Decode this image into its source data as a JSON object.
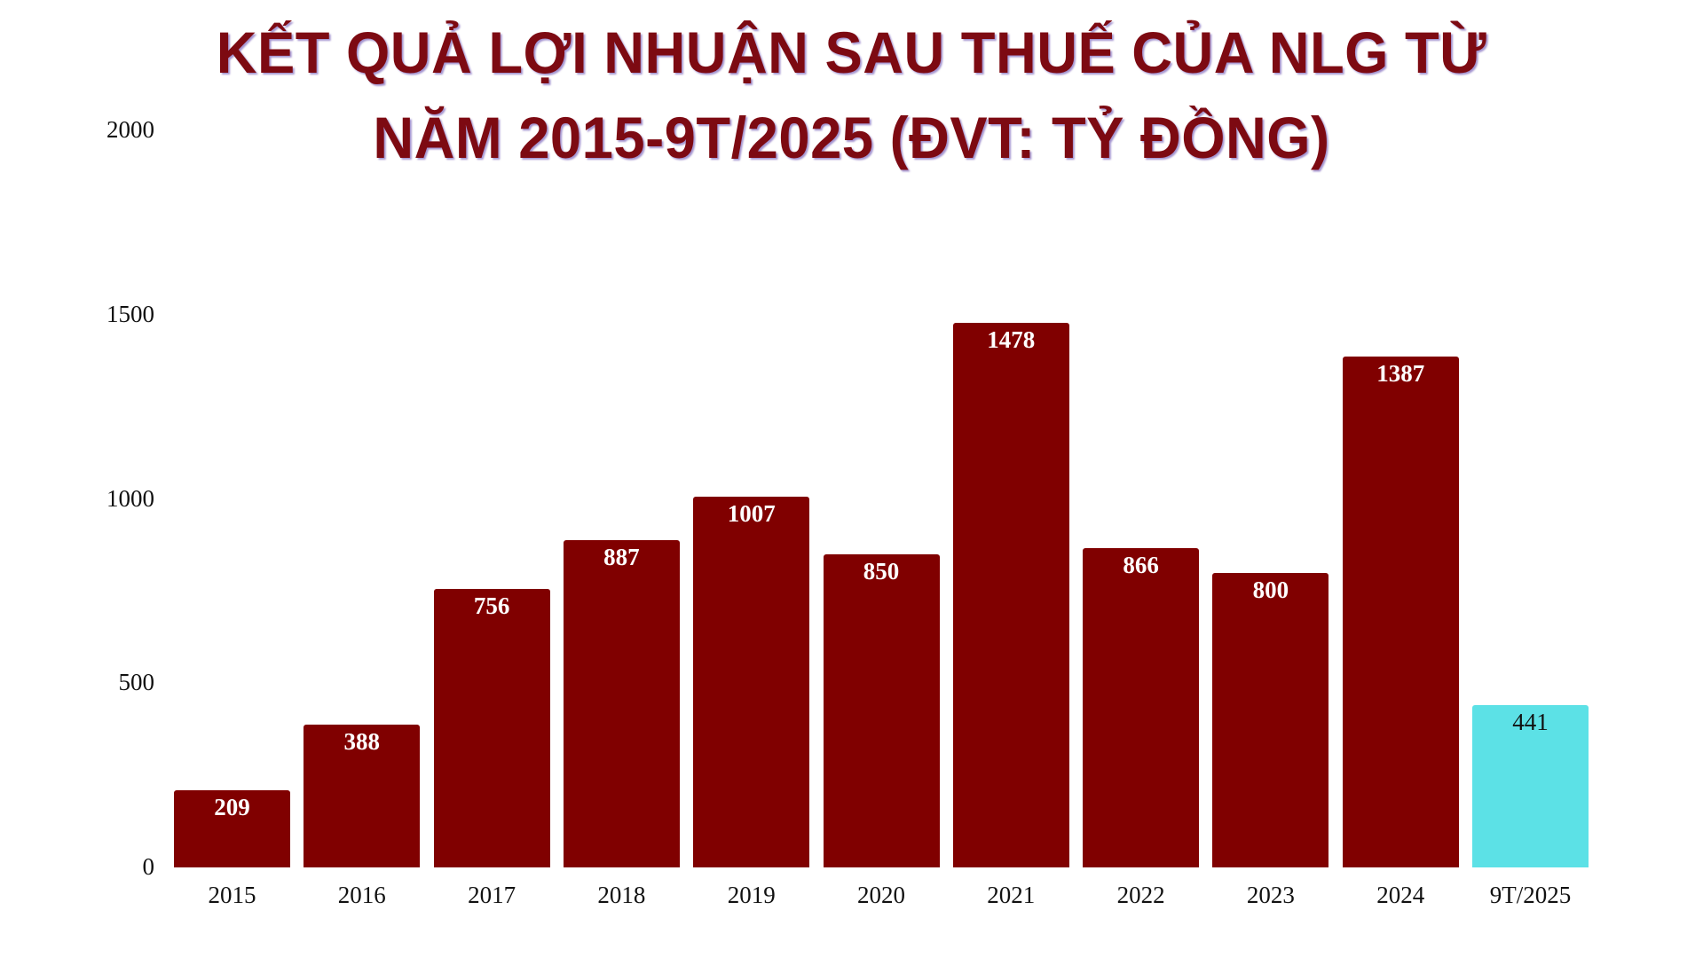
{
  "title": {
    "line1": "KẾT QUẢ LỢI NHUẬN SAU THUẾ CỦA NLG TỪ",
    "line2": "NĂM 2015-9T/2025 (ĐVT: TỶ ĐỒNG)"
  },
  "colors": {
    "bar_primary": "#800000",
    "bar_highlight": "#5ce1e6",
    "title": "#7d0a12",
    "value_label_on_primary": "#ffffff",
    "value_label_on_highlight": "#111111"
  },
  "y_axis": {
    "ticks": [
      "0",
      "500",
      "1000",
      "1500",
      "2000"
    ]
  },
  "chart_data": {
    "type": "bar",
    "title": "KẾT QUẢ LỢI NHUẬN SAU THUẾ CỦA NLG TỪ NĂM 2015-9T/2025 (ĐVT: TỶ ĐỒNG)",
    "xlabel": "",
    "ylabel": "",
    "ylim": [
      0,
      2000
    ],
    "yticks": [
      0,
      500,
      1000,
      1500,
      2000
    ],
    "grid": false,
    "legend": null,
    "categories": [
      "2015",
      "2016",
      "2017",
      "2018",
      "2019",
      "2020",
      "2021",
      "2022",
      "2023",
      "2024",
      "9T/2025"
    ],
    "values": [
      209,
      388,
      756,
      887,
      1007,
      850,
      1478,
      866,
      800,
      1387,
      441
    ],
    "value_labels": [
      "209",
      "388",
      "756",
      "887",
      "1007",
      "850",
      "1478",
      "866",
      "800",
      "1387",
      "441"
    ],
    "highlighted": [
      "9T/2025"
    ]
  }
}
